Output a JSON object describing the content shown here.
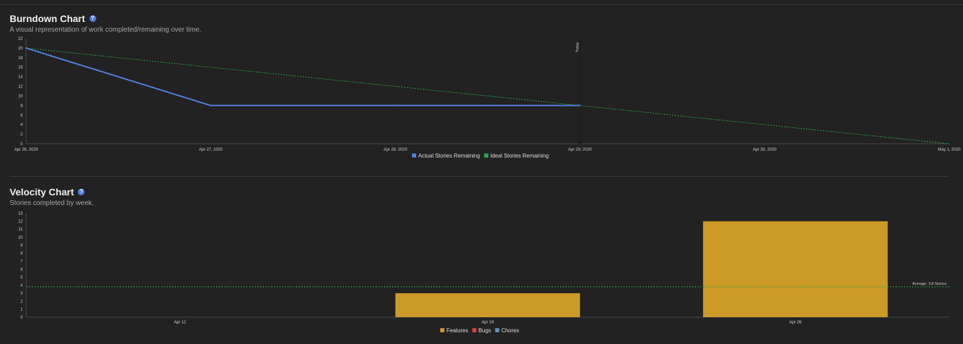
{
  "burndown": {
    "title": "Burndown Chart",
    "subtitle": "A visual representation of work completed/remaining over time."
  },
  "velocity": {
    "title": "Velocity Chart",
    "subtitle": "Stories completed by week."
  },
  "help_icon_glyph": "?",
  "chart_data": [
    {
      "type": "line",
      "x": [
        "Apr 26, 2020",
        "Apr 27, 2020",
        "Apr 28, 2020",
        "Apr 29, 2020",
        "Apr 30, 2020",
        "May 1, 2020"
      ],
      "ylim": [
        0,
        22
      ],
      "yticks": [
        0,
        2,
        4,
        6,
        8,
        10,
        12,
        14,
        16,
        18,
        20,
        22
      ],
      "series": [
        {
          "name": "Actual Stories Remaining",
          "color": "#4f7fdf",
          "style": "solid",
          "points": [
            [
              "Apr 26, 2020",
              20
            ],
            [
              "Apr 27, 2020",
              8
            ],
            [
              "Apr 28, 2020",
              8
            ],
            [
              "Apr 29, 2020",
              8
            ]
          ]
        },
        {
          "name": "Ideal Stories Remaining",
          "color": "#2fa84f",
          "style": "dashed",
          "points": [
            [
              "Apr 26, 2020",
              20
            ],
            [
              "May 1, 2020",
              0
            ]
          ]
        }
      ],
      "marker": {
        "label": "Today",
        "x": "Apr 29, 2020"
      },
      "legend": "bottom-center",
      "grid": false
    },
    {
      "type": "bar",
      "categories": [
        "Apr 12",
        "Apr 19",
        "Apr 26"
      ],
      "ylim": [
        0,
        13
      ],
      "yticks": [
        0,
        1,
        2,
        3,
        4,
        5,
        6,
        7,
        8,
        9,
        10,
        11,
        12,
        13
      ],
      "series": [
        {
          "name": "Features",
          "color": "#cc9a27",
          "values": [
            0,
            3,
            12
          ]
        },
        {
          "name": "Bugs",
          "color": "#d9403a",
          "values": [
            0,
            0,
            0
          ]
        },
        {
          "name": "Chores",
          "color": "#5f8fc0",
          "values": [
            0,
            0,
            0
          ]
        }
      ],
      "average": {
        "label": "Average: 3.8 Stories",
        "value": 3.8,
        "color": "#2fa84f"
      },
      "legend": "bottom-center",
      "grid": false
    }
  ]
}
